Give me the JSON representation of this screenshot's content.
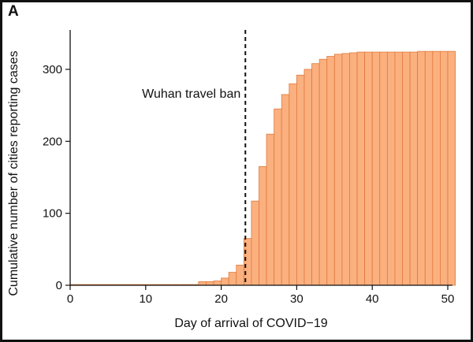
{
  "panel_label": "A",
  "chart_data": {
    "type": "bar",
    "title": "",
    "xlabel": "Day of arrival  of COVID−19",
    "ylabel": "Cumulative number of cities reporting cases",
    "xlim": [
      0,
      51
    ],
    "ylim": [
      0,
      350
    ],
    "xticks": [
      0,
      10,
      20,
      30,
      40,
      50
    ],
    "yticks": [
      0,
      100,
      200,
      300
    ],
    "x": [
      0,
      1,
      2,
      3,
      4,
      5,
      6,
      7,
      8,
      9,
      10,
      11,
      12,
      13,
      14,
      15,
      16,
      17,
      18,
      19,
      20,
      21,
      22,
      23,
      24,
      25,
      26,
      27,
      28,
      29,
      30,
      31,
      32,
      33,
      34,
      35,
      36,
      37,
      38,
      39,
      40,
      41,
      42,
      43,
      44,
      45,
      46,
      47,
      48,
      49,
      50
    ],
    "values": [
      1,
      1,
      1,
      1,
      1,
      1,
      1,
      1,
      1,
      1,
      1,
      1,
      1,
      1,
      1,
      1,
      1,
      5,
      5,
      6,
      10,
      18,
      28,
      65,
      117,
      165,
      210,
      245,
      265,
      280,
      292,
      300,
      308,
      314,
      318,
      321,
      322,
      323,
      324,
      324,
      324,
      324,
      324,
      324,
      324,
      324,
      325,
      325,
      325,
      325,
      325
    ],
    "bar_color": "#fbb07f",
    "bar_edge_color": "#e07a3c",
    "annotation": {
      "text": "Wuhan travel ban",
      "x": 23.2,
      "line_style": "dashed"
    }
  }
}
